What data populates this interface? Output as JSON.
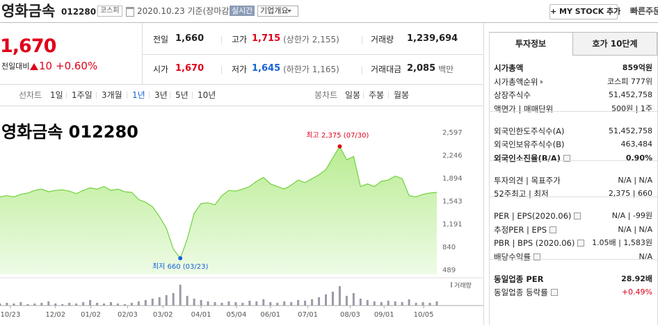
{
  "header": {
    "name": "영화금속",
    "code": "012280",
    "market": "코스피",
    "date": "2020.10.23 기준(장마감)",
    "realtime": "실시간",
    "overview": "기업개요",
    "mystock": "+ MY STOCK 추가",
    "quick_order": "빠른주문"
  },
  "price": {
    "current": "1,670",
    "change_label": "전일대비",
    "change": "10",
    "change_rate": "+0.60%",
    "color": "#e0001a"
  },
  "quote": [
    [
      {
        "label": "전일",
        "value": "1,660"
      },
      {
        "label": "고가",
        "value": "1,715",
        "note": "(상한가 2,155)",
        "color": "#e0001a"
      },
      {
        "label": "거래량",
        "value": "1,239,694"
      }
    ],
    [
      {
        "label": "시가",
        "value": "1,670",
        "color": "#e0001a"
      },
      {
        "label": "저가",
        "value": "1,645",
        "note": "(하한가 1,165)",
        "color": "#1662d6"
      },
      {
        "label": "거래대금",
        "value": "2,085",
        "note": "백만"
      }
    ]
  ],
  "periods": {
    "line_label": "선차트",
    "line": [
      "1일",
      "1주일",
      "3개월",
      "1년",
      "3년",
      "5년",
      "10년"
    ],
    "selected": "1년",
    "candle_label": "봉차트",
    "candle": [
      "일봉",
      "주봉",
      "월봉"
    ]
  },
  "chart": {
    "type": "area",
    "title": "영화금속 012280",
    "color": "#6fd23a",
    "values": [
      1600,
      1620,
      1600,
      1640,
      1660,
      1700,
      1720,
      1680,
      1700,
      1710,
      1690,
      1650,
      1700,
      1740,
      1720,
      1760,
      1700,
      1720,
      1680,
      1670,
      1560,
      1520,
      1450,
      1300,
      1120,
      800,
      660,
      950,
      1350,
      1500,
      1510,
      1480,
      1620,
      1700,
      1690,
      1720,
      1760,
      1840,
      1900,
      1800,
      1760,
      1720,
      1780,
      1860,
      1820,
      1880,
      1940,
      2020,
      2200,
      2375,
      2170,
      2220,
      1760,
      1800,
      1760,
      1840,
      1860,
      1920,
      1880,
      1620,
      1600,
      1640,
      1660,
      1670
    ],
    "xlim": [
      0,
      63
    ],
    "ylim": [
      414,
      2916
    ],
    "yticks": [
      {
        "value": 2597,
        "label": "2,597"
      },
      {
        "value": 2246,
        "label": "2,246"
      },
      {
        "value": 1894,
        "label": "1,894"
      },
      {
        "value": 1543,
        "label": "1,543"
      },
      {
        "value": 1191,
        "label": "1,191"
      },
      840,
      489
    ],
    "xticks": [
      {
        "value": 1.5,
        "label": "10/23"
      },
      {
        "value": 8.0,
        "label": "12/02"
      },
      {
        "value": 13.1,
        "label": "01/02"
      },
      {
        "value": 18.4,
        "label": "02/03"
      },
      {
        "value": 23.5,
        "label": "03/02"
      },
      {
        "value": 29.0,
        "label": "04/01"
      },
      {
        "value": 34.1,
        "label": "05/04"
      },
      {
        "value": 39.0,
        "label": "06/01"
      },
      {
        "value": 44.4,
        "label": "07/01"
      },
      {
        "value": 50.5,
        "label": "08/03"
      },
      {
        "value": 55.4,
        "label": "09/01"
      },
      {
        "value": 61.1,
        "label": "10/05"
      }
    ],
    "high_label": "최고 2,375 (07/30)",
    "high_color": "#e0001a",
    "low_label": "최저 660 (03/23)",
    "low_color": "#1662d6",
    "volume_label": "거래량",
    "volume_color": "#9a9aa8",
    "volume": [
      3,
      4,
      3,
      5,
      2,
      3,
      4,
      6,
      3,
      2,
      4,
      3,
      5,
      8,
      4,
      3,
      5,
      3,
      2,
      4,
      6,
      8,
      10,
      12,
      15,
      18,
      30,
      14,
      10,
      8,
      6,
      5,
      4,
      6,
      5,
      4,
      7,
      6,
      9,
      5,
      4,
      6,
      5,
      8,
      7,
      9,
      12,
      16,
      20,
      28,
      14,
      18,
      10,
      8,
      6,
      5,
      7,
      6,
      5,
      9,
      4,
      5,
      4,
      6
    ]
  },
  "info": {
    "tabs": [
      "투자정보",
      "호가 10단계"
    ],
    "groups": [
      [
        {
          "label": "시가총액",
          "value": "859억원",
          "bold": true
        },
        {
          "label": "시가총액순위",
          "value": "코스피 777위",
          "arrow": true
        },
        {
          "label": "상장주식수",
          "value": "51,452,758"
        },
        {
          "label": "액면가 | 매매단위",
          "value": "500원 | 1주"
        }
      ],
      [
        {
          "label": "외국인한도주식수(A)",
          "value": "51,452,758"
        },
        {
          "label": "외국인보유주식수(B)",
          "value": "463,484"
        },
        {
          "label": "외국인소진율(B/A)",
          "value": "0.90%",
          "bold": true,
          "help": true
        }
      ],
      [
        {
          "label": "투자의견 | 목표주가",
          "value": "N/A | N/A"
        },
        {
          "label": "52주최고 | 최저",
          "value": "2,375 | 660"
        }
      ],
      [
        {
          "label": "PER | EPS(2020.06)",
          "value": "N/A | -99원",
          "help": true
        },
        {
          "label": "추정PER | EPS",
          "value": "N/A | N/A",
          "help": true
        },
        {
          "label": "PBR | BPS (2020.06)",
          "value": "1.05배 | 1,583원",
          "help": true
        },
        {
          "label": "배당수익률",
          "value": "N/A",
          "help": true
        }
      ],
      [
        {
          "label": "동일업종 PER",
          "value": "28.92배",
          "bold": true
        },
        {
          "label": "동일업종 등락률",
          "value": "+0.49%",
          "help": true,
          "color": "#e0001a"
        }
      ]
    ]
  }
}
